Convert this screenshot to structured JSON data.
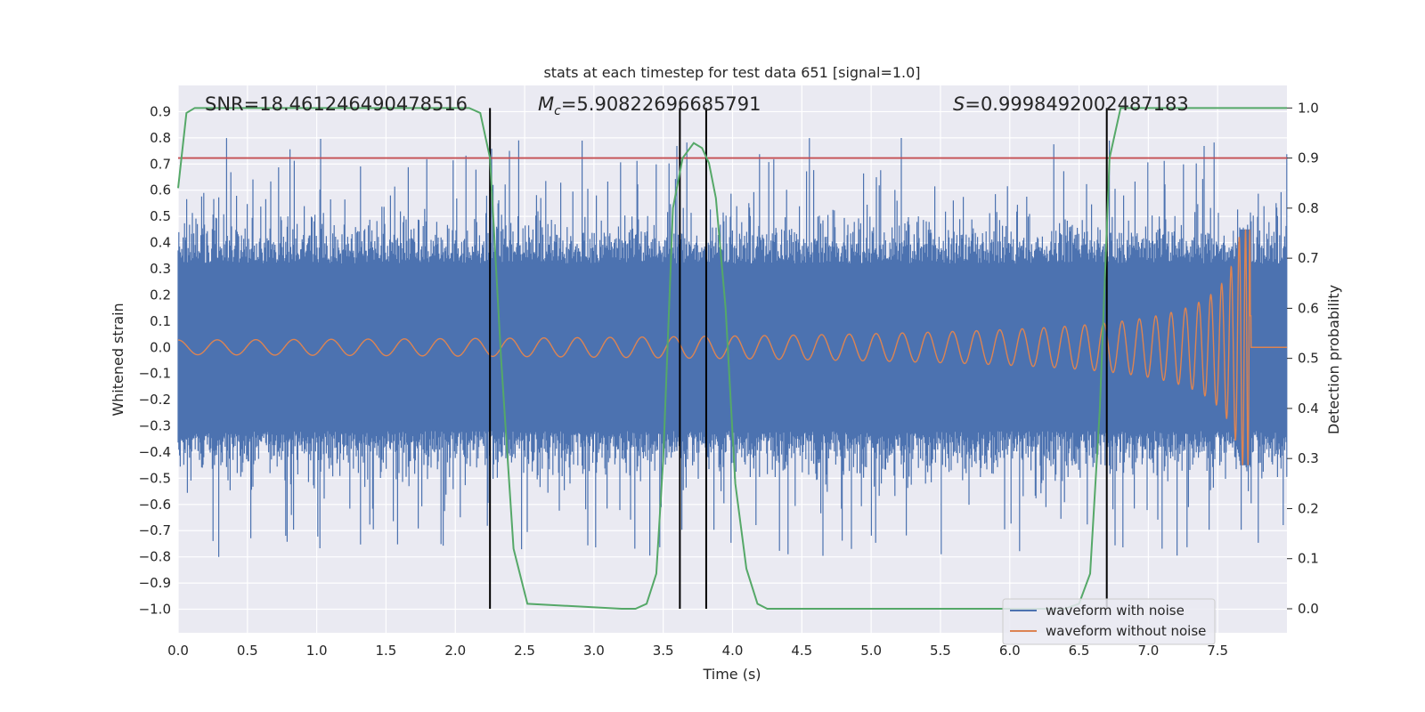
{
  "chart_data": {
    "type": "line",
    "title": "stats at each timestep for test data 651 [signal=1.0]",
    "xlabel": "Time (s)",
    "ylabel": "Whitened strain",
    "y2label": "Detection probability",
    "xlim": [
      0.0,
      8.0
    ],
    "ylim": [
      -1.09,
      1.0
    ],
    "y2lim": [
      -0.048,
      1.045
    ],
    "xticks": [
      "0.0",
      "0.5",
      "1.0",
      "1.5",
      "2.0",
      "2.5",
      "3.0",
      "3.5",
      "4.0",
      "4.5",
      "5.0",
      "5.5",
      "6.0",
      "6.5",
      "7.0",
      "7.5"
    ],
    "yticks": [
      "0.9",
      "0.8",
      "0.7",
      "0.6",
      "0.5",
      "0.4",
      "0.3",
      "0.2",
      "0.1",
      "0.0",
      "−0.1",
      "−0.2",
      "−0.3",
      "−0.4",
      "−0.5",
      "−0.6",
      "−0.7",
      "−0.8",
      "−0.9",
      "−1.0"
    ],
    "y2ticks": [
      "1.0",
      "0.9",
      "0.8",
      "0.7",
      "0.6",
      "0.5",
      "0.4",
      "0.3",
      "0.2",
      "0.1",
      "0.0"
    ],
    "annotations": {
      "snr": "SNR=18.461246490478516",
      "mc_symbol": "M",
      "mc_sub": "c",
      "mc_value": "=5.90822696685791",
      "s_symbol": "S",
      "s_value": "=0.9998492002487183"
    },
    "threshold_probability": 0.9,
    "event_lines_x": [
      2.25,
      3.62,
      3.81,
      6.7
    ],
    "series": [
      {
        "name": "waveform with noise",
        "color": "#4c72b0",
        "description": "noisy whitened strain, mostly within ±0.5 with spikes to about ±0.85",
        "x_range": [
          0.0,
          8.0
        ]
      },
      {
        "name": "waveform without noise",
        "color": "#dd8452",
        "description": "inspiral chirp: amplitude ~0.03 at t=0 growing to ~0.45 peak near t=7.73, then flat zero",
        "merger_time": 7.74,
        "peak_amplitude": 0.45
      },
      {
        "name": "detection probability",
        "color": "#55a868",
        "axis": "y2",
        "x": [
          0.0,
          0.06,
          0.12,
          2.1,
          2.18,
          2.25,
          2.33,
          2.42,
          2.52,
          3.2,
          3.3,
          3.38,
          3.45,
          3.5,
          3.57,
          3.64,
          3.72,
          3.78,
          3.83,
          3.88,
          3.95,
          4.02,
          4.1,
          4.18,
          4.25,
          4.35,
          6.4,
          6.5,
          6.58,
          6.65,
          6.72,
          6.8,
          6.9,
          8.0
        ],
        "values": [
          0.84,
          0.99,
          1.0,
          1.0,
          0.99,
          0.9,
          0.5,
          0.12,
          0.01,
          0.0,
          0.0,
          0.01,
          0.07,
          0.3,
          0.8,
          0.9,
          0.93,
          0.92,
          0.89,
          0.82,
          0.6,
          0.25,
          0.08,
          0.01,
          0.0,
          0.0,
          0.0,
          0.01,
          0.07,
          0.4,
          0.9,
          1.0,
          1.0,
          1.0
        ]
      }
    ],
    "legend": [
      "waveform with noise",
      "waveform without noise"
    ],
    "legend_position": "lower-right",
    "grid": true,
    "colors": {
      "background": "#eaeaf2",
      "grid": "#ffffff",
      "threshold": "#c44e52",
      "event_line": "#000000"
    }
  }
}
